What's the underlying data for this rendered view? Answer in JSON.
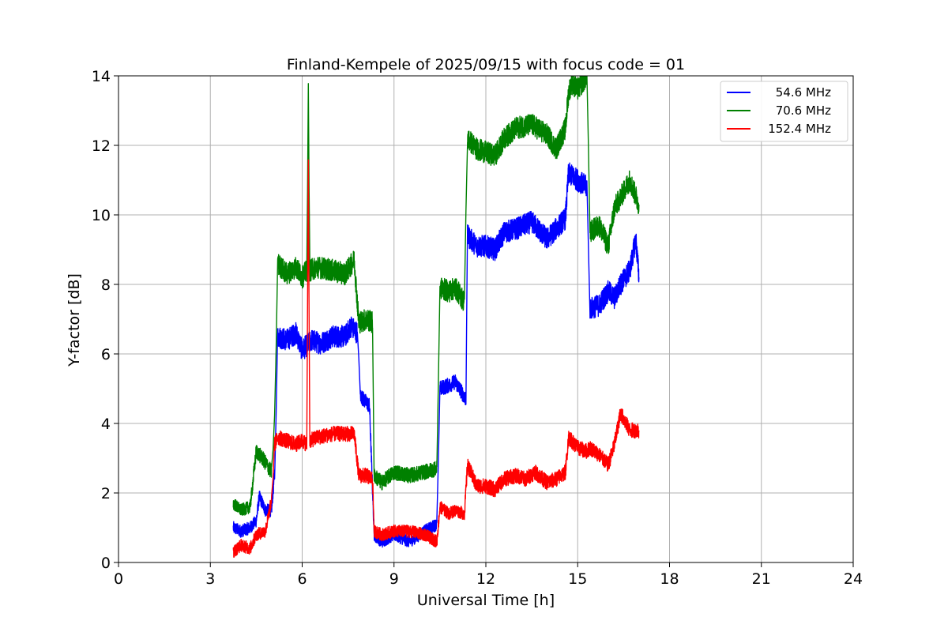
{
  "chart_data": {
    "type": "line",
    "title": "Finland-Kempele of 2025/09/15 with focus code = 01",
    "xlabel": "Universal Time [h]",
    "ylabel": "Y-factor [dB]",
    "xlim": [
      0,
      24
    ],
    "ylim": [
      0,
      14
    ],
    "xticks": [
      "0",
      "3",
      "6",
      "9",
      "12",
      "15",
      "18",
      "21",
      "24"
    ],
    "yticks": [
      "0",
      "2",
      "4",
      "6",
      "8",
      "10",
      "12",
      "14"
    ],
    "grid": true,
    "legend_position": "top-right",
    "series": [
      {
        "name": "54.6 MHz",
        "color": "#0000ff",
        "points": [
          [
            3.75,
            1.0
          ],
          [
            4.0,
            0.9
          ],
          [
            4.3,
            1.0
          ],
          [
            4.5,
            1.2
          ],
          [
            4.6,
            1.9
          ],
          [
            4.8,
            1.5
          ],
          [
            5.0,
            1.5
          ],
          [
            5.1,
            2.6
          ],
          [
            5.2,
            6.5
          ],
          [
            5.5,
            6.4
          ],
          [
            5.8,
            6.6
          ],
          [
            6.0,
            6.1
          ],
          [
            6.3,
            6.4
          ],
          [
            6.6,
            6.3
          ],
          [
            7.0,
            6.5
          ],
          [
            7.4,
            6.5
          ],
          [
            7.6,
            6.8
          ],
          [
            7.8,
            6.6
          ],
          [
            7.9,
            4.8
          ],
          [
            8.2,
            4.5
          ],
          [
            8.35,
            0.8
          ],
          [
            8.6,
            0.6
          ],
          [
            9.0,
            0.8
          ],
          [
            9.5,
            0.6
          ],
          [
            10.0,
            0.9
          ],
          [
            10.4,
            1.1
          ],
          [
            10.5,
            5.0
          ],
          [
            10.8,
            5.1
          ],
          [
            11.0,
            5.2
          ],
          [
            11.35,
            4.7
          ],
          [
            11.4,
            9.4
          ],
          [
            11.7,
            9.1
          ],
          [
            12.0,
            9.1
          ],
          [
            12.3,
            9.0
          ],
          [
            12.6,
            9.5
          ],
          [
            13.0,
            9.6
          ],
          [
            13.5,
            9.8
          ],
          [
            14.0,
            9.3
          ],
          [
            14.3,
            9.6
          ],
          [
            14.6,
            9.9
          ],
          [
            14.7,
            11.2
          ],
          [
            15.0,
            11.0
          ],
          [
            15.3,
            10.8
          ],
          [
            15.4,
            7.3
          ],
          [
            15.7,
            7.4
          ],
          [
            16.0,
            7.8
          ],
          [
            16.2,
            7.6
          ],
          [
            16.4,
            8.0
          ],
          [
            16.7,
            8.4
          ],
          [
            16.9,
            9.3
          ],
          [
            17.0,
            8.2
          ]
        ]
      },
      {
        "name": "70.6 MHz",
        "color": "#008000",
        "points": [
          [
            3.75,
            1.7
          ],
          [
            4.0,
            1.5
          ],
          [
            4.3,
            1.6
          ],
          [
            4.5,
            3.2
          ],
          [
            4.7,
            3.0
          ],
          [
            5.0,
            2.6
          ],
          [
            5.1,
            4.2
          ],
          [
            5.2,
            8.6
          ],
          [
            5.5,
            8.3
          ],
          [
            5.8,
            8.5
          ],
          [
            6.0,
            8.2
          ],
          [
            6.15,
            8.4
          ],
          [
            6.2,
            13.5
          ],
          [
            6.25,
            8.4
          ],
          [
            6.5,
            8.5
          ],
          [
            7.0,
            8.4
          ],
          [
            7.4,
            8.3
          ],
          [
            7.7,
            8.7
          ],
          [
            7.85,
            6.9
          ],
          [
            8.1,
            7.0
          ],
          [
            8.3,
            6.9
          ],
          [
            8.35,
            2.5
          ],
          [
            8.6,
            2.3
          ],
          [
            9.0,
            2.6
          ],
          [
            9.5,
            2.5
          ],
          [
            10.0,
            2.6
          ],
          [
            10.4,
            2.7
          ],
          [
            10.5,
            7.9
          ],
          [
            10.8,
            7.8
          ],
          [
            11.0,
            7.9
          ],
          [
            11.3,
            7.5
          ],
          [
            11.4,
            12.2
          ],
          [
            11.7,
            11.9
          ],
          [
            12.0,
            11.8
          ],
          [
            12.3,
            11.7
          ],
          [
            12.6,
            12.2
          ],
          [
            13.0,
            12.5
          ],
          [
            13.5,
            12.6
          ],
          [
            14.0,
            12.3
          ],
          [
            14.3,
            11.9
          ],
          [
            14.6,
            12.5
          ],
          [
            14.7,
            13.5
          ],
          [
            14.8,
            13.8
          ],
          [
            15.0,
            13.6
          ],
          [
            15.3,
            14.0
          ],
          [
            15.4,
            9.5
          ],
          [
            15.7,
            9.7
          ],
          [
            16.0,
            9.1
          ],
          [
            16.2,
            10.2
          ],
          [
            16.4,
            10.5
          ],
          [
            16.7,
            11.0
          ],
          [
            17.0,
            10.3
          ]
        ]
      },
      {
        "name": "152.4 MHz",
        "color": "#ff0000",
        "points": [
          [
            3.75,
            0.3
          ],
          [
            4.0,
            0.5
          ],
          [
            4.3,
            0.4
          ],
          [
            4.5,
            0.8
          ],
          [
            4.8,
            0.9
          ],
          [
            5.0,
            1.8
          ],
          [
            5.1,
            3.4
          ],
          [
            5.2,
            3.6
          ],
          [
            5.5,
            3.5
          ],
          [
            5.8,
            3.4
          ],
          [
            6.0,
            3.5
          ],
          [
            6.15,
            3.4
          ],
          [
            6.2,
            11.4
          ],
          [
            6.25,
            3.5
          ],
          [
            6.5,
            3.6
          ],
          [
            7.0,
            3.7
          ],
          [
            7.4,
            3.7
          ],
          [
            7.7,
            3.7
          ],
          [
            7.85,
            2.5
          ],
          [
            8.1,
            2.5
          ],
          [
            8.3,
            2.4
          ],
          [
            8.35,
            0.9
          ],
          [
            8.6,
            0.8
          ],
          [
            9.0,
            0.9
          ],
          [
            9.5,
            0.9
          ],
          [
            10.0,
            0.8
          ],
          [
            10.2,
            0.7
          ],
          [
            10.4,
            0.6
          ],
          [
            10.5,
            1.6
          ],
          [
            10.8,
            1.4
          ],
          [
            11.0,
            1.5
          ],
          [
            11.3,
            1.4
          ],
          [
            11.4,
            2.8
          ],
          [
            11.7,
            2.2
          ],
          [
            12.0,
            2.2
          ],
          [
            12.3,
            2.1
          ],
          [
            12.6,
            2.4
          ],
          [
            13.0,
            2.5
          ],
          [
            13.3,
            2.4
          ],
          [
            13.6,
            2.6
          ],
          [
            14.0,
            2.3
          ],
          [
            14.3,
            2.4
          ],
          [
            14.6,
            2.6
          ],
          [
            14.7,
            3.6
          ],
          [
            15.0,
            3.3
          ],
          [
            15.3,
            3.2
          ],
          [
            15.4,
            3.3
          ],
          [
            15.7,
            3.1
          ],
          [
            16.0,
            2.8
          ],
          [
            16.2,
            3.4
          ],
          [
            16.4,
            4.3
          ],
          [
            16.7,
            3.8
          ],
          [
            17.0,
            3.8
          ]
        ]
      }
    ]
  }
}
